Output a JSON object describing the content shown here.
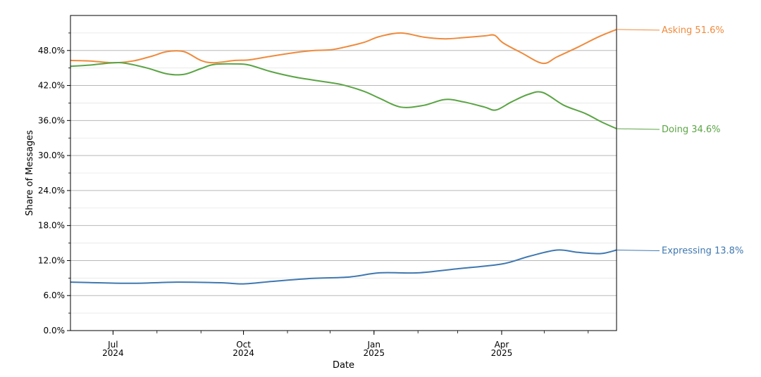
{
  "chart_data": {
    "type": "line",
    "xlabel": "Date",
    "ylabel": "Share of Messages",
    "x_range": [
      "2024-06-01",
      "2025-06-21"
    ],
    "ylim": [
      0,
      54
    ],
    "y_ticks": [
      "0.0%",
      "6.0%",
      "12.0%",
      "18.0%",
      "24.0%",
      "30.0%",
      "36.0%",
      "42.0%",
      "48.0%"
    ],
    "x_ticks": [
      {
        "date": "2024-07-01",
        "month": "Jul",
        "year": "2024"
      },
      {
        "date": "2024-10-01",
        "month": "Oct",
        "year": "2024"
      },
      {
        "date": "2025-01-01",
        "month": "Jan",
        "year": "2025"
      },
      {
        "date": "2025-04-01",
        "month": "Apr",
        "year": "2025"
      }
    ],
    "grid": true,
    "series": [
      {
        "name": "Asking",
        "color": "#ef8a3c",
        "end_label": "Asking  51.6%",
        "points": [
          [
            "2024-06-01",
            46.3
          ],
          [
            "2024-06-15",
            46.2
          ],
          [
            "2024-07-01",
            45.9
          ],
          [
            "2024-07-15",
            46.2
          ],
          [
            "2024-07-28",
            47.0
          ],
          [
            "2024-08-08",
            47.8
          ],
          [
            "2024-08-20",
            47.8
          ],
          [
            "2024-09-01",
            46.3
          ],
          [
            "2024-09-10",
            45.9
          ],
          [
            "2024-09-25",
            46.3
          ],
          [
            "2024-10-05",
            46.4
          ],
          [
            "2024-10-20",
            47.0
          ],
          [
            "2024-11-05",
            47.6
          ],
          [
            "2024-11-20",
            48.0
          ],
          [
            "2024-12-01",
            48.1
          ],
          [
            "2024-12-10",
            48.5
          ],
          [
            "2024-12-25",
            49.4
          ],
          [
            "2025-01-05",
            50.4
          ],
          [
            "2025-01-20",
            51.0
          ],
          [
            "2025-02-05",
            50.3
          ],
          [
            "2025-02-20",
            50.0
          ],
          [
            "2025-03-05",
            50.2
          ],
          [
            "2025-03-20",
            50.5
          ],
          [
            "2025-03-27",
            50.6
          ],
          [
            "2025-04-02",
            49.3
          ],
          [
            "2025-04-15",
            47.6
          ],
          [
            "2025-04-30",
            45.8
          ],
          [
            "2025-05-10",
            46.9
          ],
          [
            "2025-05-25",
            48.6
          ],
          [
            "2025-06-08",
            50.3
          ],
          [
            "2025-06-21",
            51.6
          ]
        ]
      },
      {
        "name": "Doing",
        "color": "#5aa444",
        "end_label": "Doing  34.6%",
        "points": [
          [
            "2024-06-01",
            45.3
          ],
          [
            "2024-06-15",
            45.5
          ],
          [
            "2024-07-01",
            45.9
          ],
          [
            "2024-07-10",
            45.8
          ],
          [
            "2024-07-25",
            45.0
          ],
          [
            "2024-08-08",
            44.0
          ],
          [
            "2024-08-20",
            43.9
          ],
          [
            "2024-09-01",
            44.9
          ],
          [
            "2024-09-10",
            45.6
          ],
          [
            "2024-09-25",
            45.7
          ],
          [
            "2024-10-05",
            45.5
          ],
          [
            "2024-10-20",
            44.4
          ],
          [
            "2024-11-05",
            43.5
          ],
          [
            "2024-11-20",
            42.9
          ],
          [
            "2024-12-01",
            42.5
          ],
          [
            "2024-12-10",
            42.1
          ],
          [
            "2024-12-25",
            41.0
          ],
          [
            "2025-01-05",
            39.8
          ],
          [
            "2025-01-20",
            38.3
          ],
          [
            "2025-02-05",
            38.6
          ],
          [
            "2025-02-20",
            39.6
          ],
          [
            "2025-03-05",
            39.2
          ],
          [
            "2025-03-20",
            38.3
          ],
          [
            "2025-03-28",
            37.8
          ],
          [
            "2025-04-08",
            39.2
          ],
          [
            "2025-04-20",
            40.5
          ],
          [
            "2025-04-30",
            40.8
          ],
          [
            "2025-05-15",
            38.6
          ],
          [
            "2025-05-30",
            37.2
          ],
          [
            "2025-06-10",
            35.8
          ],
          [
            "2025-06-21",
            34.6
          ]
        ]
      },
      {
        "name": "Expressing",
        "color": "#3f78b0",
        "end_label": "Expressing  13.8%",
        "points": [
          [
            "2024-06-01",
            8.3
          ],
          [
            "2024-06-20",
            8.2
          ],
          [
            "2024-07-15",
            8.1
          ],
          [
            "2024-08-15",
            8.3
          ],
          [
            "2024-09-15",
            8.2
          ],
          [
            "2024-10-01",
            8.0
          ],
          [
            "2024-10-20",
            8.4
          ],
          [
            "2024-11-15",
            8.9
          ],
          [
            "2024-12-15",
            9.2
          ],
          [
            "2025-01-05",
            9.9
          ],
          [
            "2025-02-01",
            9.9
          ],
          [
            "2025-03-01",
            10.6
          ],
          [
            "2025-04-01",
            11.4
          ],
          [
            "2025-04-20",
            12.7
          ],
          [
            "2025-05-10",
            13.8
          ],
          [
            "2025-05-25",
            13.4
          ],
          [
            "2025-06-10",
            13.2
          ],
          [
            "2025-06-21",
            13.8
          ]
        ]
      }
    ]
  }
}
